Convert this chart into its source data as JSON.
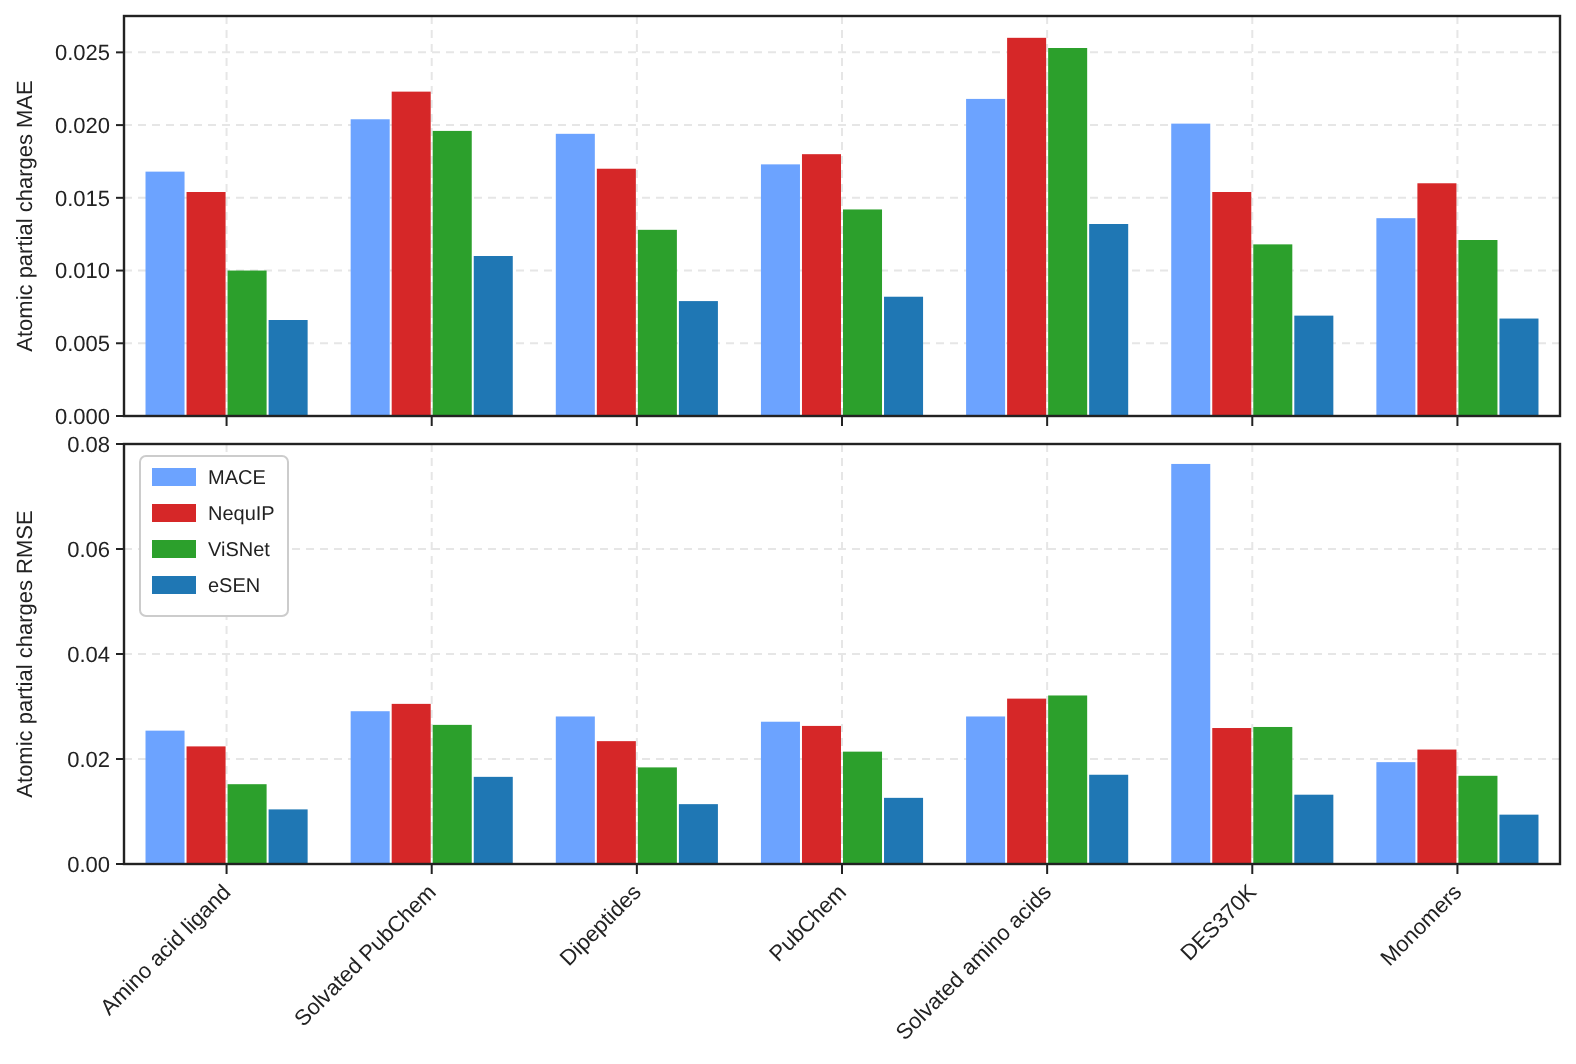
{
  "chart_data": [
    {
      "type": "bar",
      "ylabel": "Atomic partial charges MAE",
      "categories": [
        null,
        null,
        null,
        null,
        null,
        null,
        null
      ],
      "series": [
        {
          "color": "#6ca3ff",
          "values": [
            0.0168,
            0.0204,
            0.0194,
            0.0173,
            0.0218,
            0.0201,
            0.0136
          ]
        },
        {
          "color": "#d62728",
          "values": [
            0.0154,
            0.0223,
            0.017,
            0.018,
            0.026,
            0.0154,
            0.016
          ]
        },
        {
          "color": "#2ca02c",
          "values": [
            0.01,
            0.0196,
            0.0128,
            0.0142,
            0.0253,
            0.0118,
            0.0121
          ]
        },
        {
          "color": "#1f77b4",
          "values": [
            0.0066,
            0.011,
            0.0079,
            0.0082,
            0.0132,
            0.0069,
            0.0067
          ]
        }
      ],
      "ylim": [
        0,
        0.0275
      ],
      "yticks": [
        {
          "value": 0,
          "label": "0.000"
        },
        {
          "value": 0.005,
          "label": "0.005"
        },
        {
          "value": 0.01,
          "label": "0.010"
        },
        {
          "value": 0.015,
          "label": "0.015"
        },
        {
          "value": 0.02,
          "label": "0.020"
        },
        {
          "value": 0.025,
          "label": "0.025"
        }
      ],
      "grid": true,
      "tick_labels": "y"
    },
    {
      "type": "bar",
      "ylabel": "Atomic partial charges RMSE",
      "categories": [
        "Amino acid ligand",
        "Solvated PubChem",
        "Dipeptides",
        "PubChem",
        "Solvated amino acids",
        "DES370K",
        "Monomers"
      ],
      "series": [
        {
          "name": "MACE",
          "color": "#6ca3ff",
          "values": [
            0.0254,
            0.0291,
            0.0281,
            0.0271,
            0.0281,
            0.0762,
            0.0194
          ]
        },
        {
          "name": "NequIP",
          "color": "#d62728",
          "values": [
            0.0224,
            0.0305,
            0.0234,
            0.0263,
            0.0315,
            0.0259,
            0.0218
          ]
        },
        {
          "name": "ViSNet",
          "color": "#2ca02c",
          "values": [
            0.0152,
            0.0265,
            0.0184,
            0.0214,
            0.0321,
            0.0261,
            0.0168
          ]
        },
        {
          "name": "eSEN",
          "color": "#1f77b4",
          "values": [
            0.0104,
            0.0166,
            0.0114,
            0.0126,
            0.017,
            0.0132,
            0.0094
          ]
        }
      ],
      "ylim": [
        0,
        0.08
      ],
      "yticks": [
        {
          "value": 0,
          "label": "0.00"
        },
        {
          "value": 0.02,
          "label": "0.02"
        },
        {
          "value": 0.04,
          "label": "0.04"
        },
        {
          "value": 0.06,
          "label": "0.06"
        },
        {
          "value": 0.08,
          "label": "0.08"
        }
      ],
      "grid": true,
      "legend": "top left"
    }
  ]
}
